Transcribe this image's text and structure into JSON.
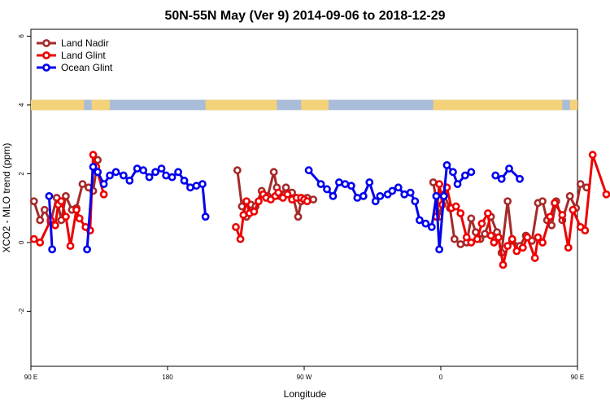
{
  "chart_data": {
    "type": "line",
    "title": "50N-55N May (Ver 9)   2014-09-06 to 2018-12-29",
    "xlabel": "Longitude",
    "ylabel": "XCO2 - MLO trend (ppm)",
    "xlim": [
      90,
      450
    ],
    "ylim": [
      -3.6,
      6.2
    ],
    "xticks": [
      {
        "value": 90,
        "label": "90 E"
      },
      {
        "value": 180,
        "label": "180"
      },
      {
        "value": 270,
        "label": "90 W"
      },
      {
        "value": 360,
        "label": "0"
      },
      {
        "value": 450,
        "label": "90 E"
      },
      {
        "value": 540,
        "label": "180"
      }
    ],
    "yticks": [
      {
        "value": -2,
        "label": "-2"
      },
      {
        "value": 0,
        "label": "0"
      },
      {
        "value": 2,
        "label": "2"
      },
      {
        "value": 4,
        "label": "4"
      },
      {
        "value": 6,
        "label": "6"
      }
    ],
    "legend_position": "top-left",
    "grid": false,
    "land_ocean_strip": {
      "y_range": [
        3.85,
        4.15
      ],
      "ocean_color": "#a9bcd8",
      "land_color": "#f4d27a"
    },
    "series": [
      {
        "name": "Land Nadir",
        "color": "#a52a2a",
        "x": [
          92,
          96,
          99,
          103,
          107,
          110,
          113,
          117,
          120,
          124,
          128,
          131,
          134,
          226,
          229,
          232,
          235,
          238,
          242,
          246,
          250,
          252,
          254,
          258,
          262,
          266,
          268,
          272,
          276,
          355,
          359,
          362,
          366,
          369,
          373,
          377,
          380,
          383,
          386,
          389,
          393,
          397,
          400,
          404,
          407,
          412,
          416,
          420,
          424,
          427,
          430,
          433,
          436,
          440,
          445,
          449,
          452,
          456
        ],
        "y": [
          1.2,
          0.65,
          0.95,
          0.6,
          1.3,
          0.65,
          1.35,
          0.95,
          1.0,
          1.7,
          1.6,
          1.5,
          2.4,
          2.1,
          1.05,
          0.75,
          1.1,
          1.05,
          1.5,
          1.35,
          2.05,
          1.6,
          1.35,
          1.6,
          1.45,
          0.75,
          1.2,
          1.3,
          1.25,
          1.75,
          0.75,
          1.4,
          1.0,
          0.1,
          -0.05,
          0.0,
          0.7,
          0.3,
          0.1,
          0.25,
          0.75,
          0.3,
          -0.3,
          1.2,
          0.05,
          -0.1,
          0.2,
          0.05,
          1.15,
          1.2,
          0.65,
          0.5,
          1.2,
          0.65,
          1.35,
          1.0,
          1.7,
          1.6
        ]
      },
      {
        "name": "Land Glint",
        "color": "#ee0000",
        "x": [
          92,
          96,
          103,
          106,
          108,
          110,
          113,
          116,
          120,
          122,
          126,
          129,
          131,
          133,
          138,
          225,
          228,
          230,
          232,
          234,
          237,
          240,
          243,
          245,
          248,
          251,
          253,
          256,
          259,
          262,
          265,
          268,
          270,
          272,
          357,
          359,
          361,
          364,
          367,
          370,
          373,
          377,
          380,
          384,
          387,
          391,
          393,
          395,
          398,
          401,
          404,
          407,
          410,
          414,
          417,
          422,
          424,
          427,
          432,
          435,
          440,
          444,
          447,
          452,
          455,
          460,
          469
        ],
        "y": [
          0.1,
          0.0,
          0.65,
          0.5,
          1.1,
          1.2,
          0.75,
          -0.1,
          0.95,
          0.7,
          0.45,
          0.35,
          2.55,
          2.2,
          1.4,
          0.45,
          0.1,
          0.8,
          1.2,
          0.85,
          0.9,
          1.2,
          1.4,
          1.3,
          1.25,
          1.35,
          1.45,
          1.3,
          1.4,
          1.25,
          1.3,
          1.3,
          1.25,
          1.2,
          0.75,
          1.7,
          1.1,
          1.6,
          1.0,
          1.05,
          0.85,
          0.15,
          0.0,
          0.1,
          0.55,
          0.85,
          0.2,
          0.0,
          0.15,
          -0.65,
          -0.1,
          0.1,
          -0.25,
          -0.15,
          0.15,
          -0.45,
          0.15,
          0.0,
          0.75,
          1.15,
          0.8,
          -0.15,
          0.95,
          0.45,
          0.35,
          2.55,
          1.4
        ]
      },
      {
        "name": "Ocean Glint",
        "color": "#0000ee",
        "x": [
          102,
          104,
          127,
          131,
          134,
          138,
          142,
          146,
          151,
          155,
          160,
          164,
          168,
          172,
          176,
          179,
          183,
          187,
          191,
          195,
          199,
          203,
          205,
          273,
          281,
          285,
          289,
          293,
          297,
          301,
          305,
          309,
          313,
          317,
          320,
          325,
          328,
          332,
          336,
          340,
          343,
          346,
          350,
          354,
          357,
          359,
          362,
          364,
          368,
          371,
          376,
          380,
          396,
          400,
          405,
          412
        ],
        "y": [
          1.35,
          -0.2,
          -0.2,
          2.2,
          2.05,
          1.7,
          1.95,
          2.05,
          1.95,
          1.8,
          2.15,
          2.1,
          1.9,
          2.05,
          2.15,
          1.95,
          1.9,
          2.05,
          1.8,
          1.6,
          1.65,
          1.7,
          0.75,
          2.1,
          1.7,
          1.55,
          1.35,
          1.75,
          1.7,
          1.65,
          1.3,
          1.35,
          1.75,
          1.2,
          1.35,
          1.4,
          1.5,
          1.6,
          1.4,
          1.45,
          1.2,
          0.65,
          0.55,
          0.45,
          1.35,
          -0.2,
          1.35,
          2.25,
          2.05,
          1.7,
          1.95,
          2.05,
          1.95,
          1.85,
          2.15,
          1.85
        ]
      }
    ]
  }
}
